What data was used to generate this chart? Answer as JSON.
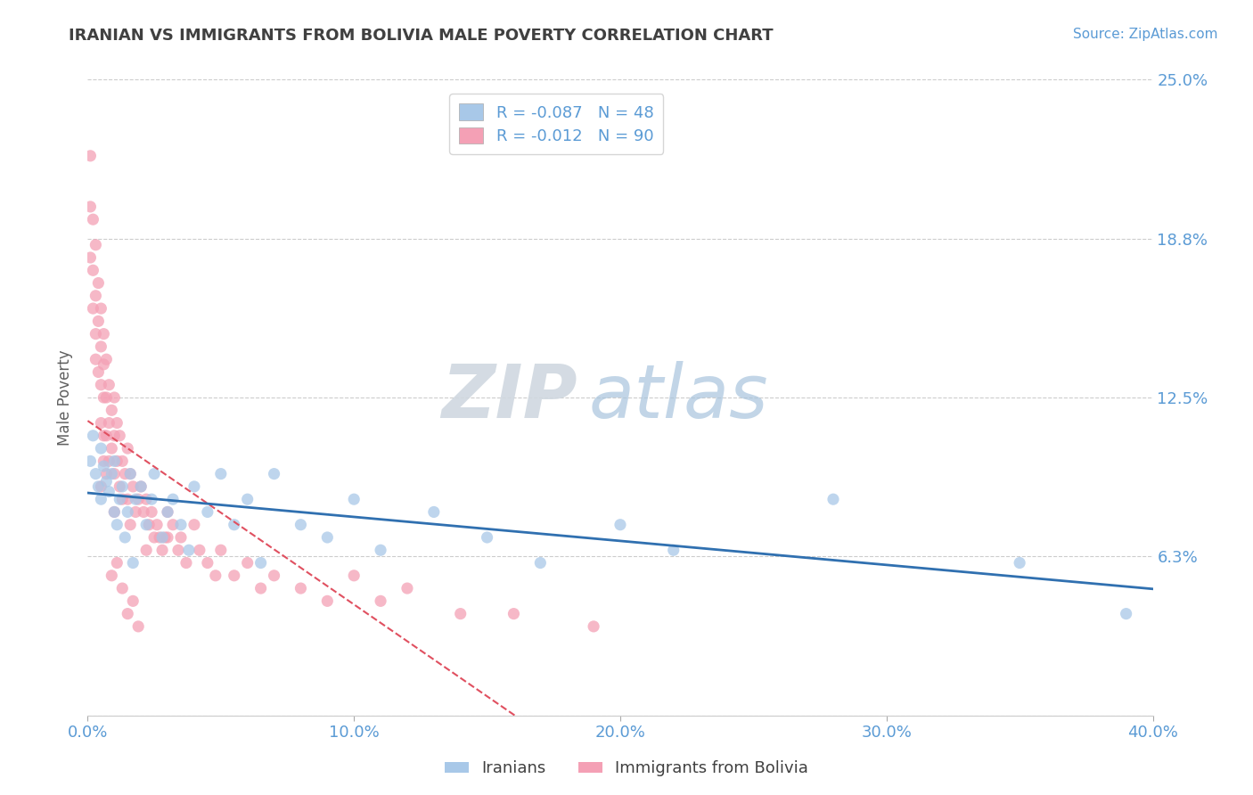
{
  "title": "IRANIAN VS IMMIGRANTS FROM BOLIVIA MALE POVERTY CORRELATION CHART",
  "source": "Source: ZipAtlas.com",
  "ylabel": "Male Poverty",
  "xlim": [
    0.0,
    0.4
  ],
  "ylim": [
    0.0,
    0.25
  ],
  "yticks": [
    0.0,
    0.0625,
    0.125,
    0.1875,
    0.25
  ],
  "ytick_labels": [
    "",
    "6.3%",
    "12.5%",
    "18.8%",
    "25.0%"
  ],
  "xticks": [
    0.0,
    0.1,
    0.2,
    0.3,
    0.4
  ],
  "xtick_labels": [
    "0.0%",
    "10.0%",
    "20.0%",
    "30.0%",
    "40.0%"
  ],
  "legend_labels": [
    "Iranians",
    "Immigrants from Bolivia"
  ],
  "series1_label": "R = -0.087   N = 48",
  "series2_label": "R = -0.012   N = 90",
  "series1_color": "#a8c8e8",
  "series2_color": "#f4a0b5",
  "series1_line_color": "#3070b0",
  "series2_line_color": "#e05060",
  "series2_line_style": "--",
  "background_color": "#ffffff",
  "title_color": "#404040",
  "axis_color": "#5b9bd5",
  "iranians_x": [
    0.001,
    0.002,
    0.003,
    0.004,
    0.005,
    0.005,
    0.006,
    0.007,
    0.008,
    0.009,
    0.01,
    0.01,
    0.011,
    0.012,
    0.013,
    0.014,
    0.015,
    0.016,
    0.017,
    0.018,
    0.02,
    0.022,
    0.024,
    0.025,
    0.028,
    0.03,
    0.032,
    0.035,
    0.038,
    0.04,
    0.045,
    0.05,
    0.055,
    0.06,
    0.065,
    0.07,
    0.08,
    0.09,
    0.1,
    0.11,
    0.13,
    0.15,
    0.17,
    0.2,
    0.22,
    0.28,
    0.35,
    0.39
  ],
  "iranians_y": [
    0.1,
    0.11,
    0.095,
    0.09,
    0.105,
    0.085,
    0.098,
    0.092,
    0.088,
    0.095,
    0.08,
    0.1,
    0.075,
    0.085,
    0.09,
    0.07,
    0.08,
    0.095,
    0.06,
    0.085,
    0.09,
    0.075,
    0.085,
    0.095,
    0.07,
    0.08,
    0.085,
    0.075,
    0.065,
    0.09,
    0.08,
    0.095,
    0.075,
    0.085,
    0.06,
    0.095,
    0.075,
    0.07,
    0.085,
    0.065,
    0.08,
    0.07,
    0.06,
    0.075,
    0.065,
    0.085,
    0.06,
    0.04
  ],
  "bolivia_x": [
    0.001,
    0.001,
    0.001,
    0.002,
    0.002,
    0.002,
    0.003,
    0.003,
    0.003,
    0.003,
    0.004,
    0.004,
    0.004,
    0.005,
    0.005,
    0.005,
    0.005,
    0.006,
    0.006,
    0.006,
    0.006,
    0.006,
    0.007,
    0.007,
    0.007,
    0.008,
    0.008,
    0.008,
    0.009,
    0.009,
    0.01,
    0.01,
    0.01,
    0.01,
    0.011,
    0.011,
    0.012,
    0.012,
    0.013,
    0.013,
    0.014,
    0.015,
    0.015,
    0.016,
    0.016,
    0.017,
    0.018,
    0.019,
    0.02,
    0.021,
    0.022,
    0.023,
    0.024,
    0.025,
    0.026,
    0.027,
    0.028,
    0.029,
    0.03,
    0.032,
    0.034,
    0.035,
    0.037,
    0.04,
    0.042,
    0.045,
    0.048,
    0.05,
    0.055,
    0.06,
    0.065,
    0.07,
    0.08,
    0.09,
    0.1,
    0.11,
    0.12,
    0.14,
    0.16,
    0.19,
    0.005,
    0.007,
    0.009,
    0.011,
    0.013,
    0.015,
    0.017,
    0.019,
    0.022,
    0.03
  ],
  "bolivia_y": [
    0.22,
    0.2,
    0.18,
    0.195,
    0.175,
    0.16,
    0.185,
    0.165,
    0.15,
    0.14,
    0.17,
    0.155,
    0.135,
    0.16,
    0.145,
    0.13,
    0.115,
    0.15,
    0.138,
    0.125,
    0.11,
    0.1,
    0.14,
    0.125,
    0.11,
    0.13,
    0.115,
    0.1,
    0.12,
    0.105,
    0.125,
    0.11,
    0.095,
    0.08,
    0.115,
    0.1,
    0.11,
    0.09,
    0.1,
    0.085,
    0.095,
    0.105,
    0.085,
    0.095,
    0.075,
    0.09,
    0.08,
    0.085,
    0.09,
    0.08,
    0.085,
    0.075,
    0.08,
    0.07,
    0.075,
    0.07,
    0.065,
    0.07,
    0.08,
    0.075,
    0.065,
    0.07,
    0.06,
    0.075,
    0.065,
    0.06,
    0.055,
    0.065,
    0.055,
    0.06,
    0.05,
    0.055,
    0.05,
    0.045,
    0.055,
    0.045,
    0.05,
    0.04,
    0.04,
    0.035,
    0.09,
    0.095,
    0.055,
    0.06,
    0.05,
    0.04,
    0.045,
    0.035,
    0.065,
    0.07
  ]
}
